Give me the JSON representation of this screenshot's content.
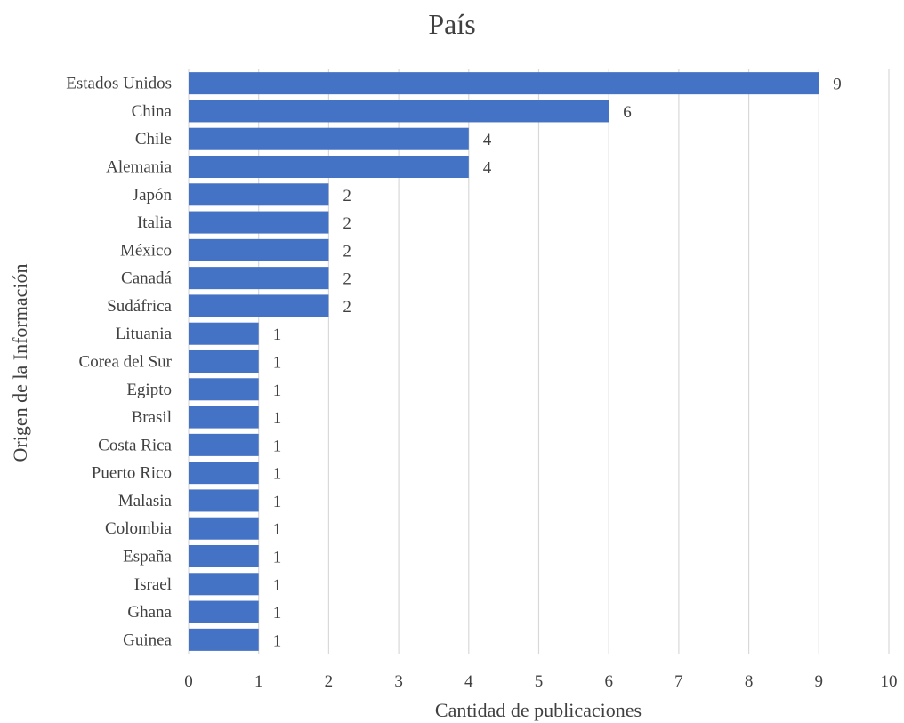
{
  "chart_data": {
    "type": "bar",
    "orientation": "horizontal",
    "title": "País",
    "xlabel": "Cantidad de publicaciones",
    "ylabel": "Origen de la Información",
    "categories": [
      "Estados Unidos",
      "China",
      "Chile",
      "Alemania",
      "Japón",
      "Italia",
      "México",
      "Canadá",
      "Sudáfrica",
      "Lituania",
      "Corea del Sur",
      "Egipto",
      "Brasil",
      "Costa Rica",
      "Puerto Rico",
      "Malasia",
      "Colombia",
      "España",
      "Israel",
      "Ghana",
      "Guinea"
    ],
    "values": [
      9,
      6,
      4,
      4,
      2,
      2,
      2,
      2,
      2,
      1,
      1,
      1,
      1,
      1,
      1,
      1,
      1,
      1,
      1,
      1,
      1
    ],
    "xlim": [
      0,
      10
    ],
    "xticks": [
      "0",
      "1",
      "2",
      "3",
      "4",
      "5",
      "6",
      "7",
      "8",
      "9",
      "10"
    ],
    "grid": true,
    "data_labels": true,
    "legend": "none",
    "colors": {
      "bar": "#4472c4"
    }
  }
}
